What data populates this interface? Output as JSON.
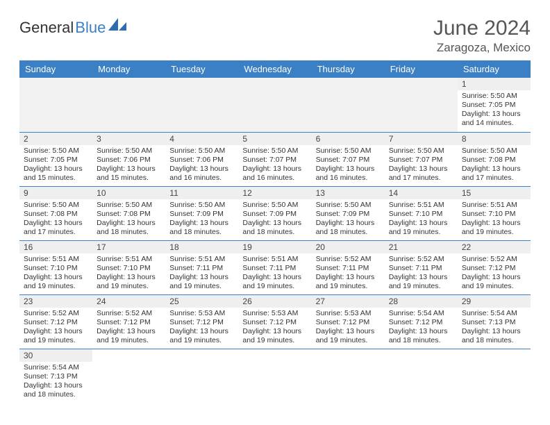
{
  "brand": {
    "part1": "General",
    "part2": "Blue"
  },
  "title": "June 2024",
  "location": "Zaragoza, Mexico",
  "columns": [
    "Sunday",
    "Monday",
    "Tuesday",
    "Wednesday",
    "Thursday",
    "Friday",
    "Saturday"
  ],
  "colors": {
    "header_bg": "#3b7fc4",
    "header_text": "#ffffff",
    "daybar_bg": "#efefef",
    "rule": "#3b7fc4"
  },
  "weeks": [
    [
      null,
      null,
      null,
      null,
      null,
      null,
      {
        "n": "1",
        "sr": "5:50 AM",
        "ss": "7:05 PM",
        "dl": "13 hours and 14 minutes."
      }
    ],
    [
      {
        "n": "2",
        "sr": "5:50 AM",
        "ss": "7:05 PM",
        "dl": "13 hours and 15 minutes."
      },
      {
        "n": "3",
        "sr": "5:50 AM",
        "ss": "7:06 PM",
        "dl": "13 hours and 15 minutes."
      },
      {
        "n": "4",
        "sr": "5:50 AM",
        "ss": "7:06 PM",
        "dl": "13 hours and 16 minutes."
      },
      {
        "n": "5",
        "sr": "5:50 AM",
        "ss": "7:07 PM",
        "dl": "13 hours and 16 minutes."
      },
      {
        "n": "6",
        "sr": "5:50 AM",
        "ss": "7:07 PM",
        "dl": "13 hours and 16 minutes."
      },
      {
        "n": "7",
        "sr": "5:50 AM",
        "ss": "7:07 PM",
        "dl": "13 hours and 17 minutes."
      },
      {
        "n": "8",
        "sr": "5:50 AM",
        "ss": "7:08 PM",
        "dl": "13 hours and 17 minutes."
      }
    ],
    [
      {
        "n": "9",
        "sr": "5:50 AM",
        "ss": "7:08 PM",
        "dl": "13 hours and 17 minutes."
      },
      {
        "n": "10",
        "sr": "5:50 AM",
        "ss": "7:08 PM",
        "dl": "13 hours and 18 minutes."
      },
      {
        "n": "11",
        "sr": "5:50 AM",
        "ss": "7:09 PM",
        "dl": "13 hours and 18 minutes."
      },
      {
        "n": "12",
        "sr": "5:50 AM",
        "ss": "7:09 PM",
        "dl": "13 hours and 18 minutes."
      },
      {
        "n": "13",
        "sr": "5:50 AM",
        "ss": "7:09 PM",
        "dl": "13 hours and 18 minutes."
      },
      {
        "n": "14",
        "sr": "5:51 AM",
        "ss": "7:10 PM",
        "dl": "13 hours and 19 minutes."
      },
      {
        "n": "15",
        "sr": "5:51 AM",
        "ss": "7:10 PM",
        "dl": "13 hours and 19 minutes."
      }
    ],
    [
      {
        "n": "16",
        "sr": "5:51 AM",
        "ss": "7:10 PM",
        "dl": "13 hours and 19 minutes."
      },
      {
        "n": "17",
        "sr": "5:51 AM",
        "ss": "7:10 PM",
        "dl": "13 hours and 19 minutes."
      },
      {
        "n": "18",
        "sr": "5:51 AM",
        "ss": "7:11 PM",
        "dl": "13 hours and 19 minutes."
      },
      {
        "n": "19",
        "sr": "5:51 AM",
        "ss": "7:11 PM",
        "dl": "13 hours and 19 minutes."
      },
      {
        "n": "20",
        "sr": "5:52 AM",
        "ss": "7:11 PM",
        "dl": "13 hours and 19 minutes."
      },
      {
        "n": "21",
        "sr": "5:52 AM",
        "ss": "7:11 PM",
        "dl": "13 hours and 19 minutes."
      },
      {
        "n": "22",
        "sr": "5:52 AM",
        "ss": "7:12 PM",
        "dl": "13 hours and 19 minutes."
      }
    ],
    [
      {
        "n": "23",
        "sr": "5:52 AM",
        "ss": "7:12 PM",
        "dl": "13 hours and 19 minutes."
      },
      {
        "n": "24",
        "sr": "5:52 AM",
        "ss": "7:12 PM",
        "dl": "13 hours and 19 minutes."
      },
      {
        "n": "25",
        "sr": "5:53 AM",
        "ss": "7:12 PM",
        "dl": "13 hours and 19 minutes."
      },
      {
        "n": "26",
        "sr": "5:53 AM",
        "ss": "7:12 PM",
        "dl": "13 hours and 19 minutes."
      },
      {
        "n": "27",
        "sr": "5:53 AM",
        "ss": "7:12 PM",
        "dl": "13 hours and 19 minutes."
      },
      {
        "n": "28",
        "sr": "5:54 AM",
        "ss": "7:12 PM",
        "dl": "13 hours and 18 minutes."
      },
      {
        "n": "29",
        "sr": "5:54 AM",
        "ss": "7:13 PM",
        "dl": "13 hours and 18 minutes."
      }
    ],
    [
      {
        "n": "30",
        "sr": "5:54 AM",
        "ss": "7:13 PM",
        "dl": "13 hours and 18 minutes."
      },
      null,
      null,
      null,
      null,
      null,
      null
    ]
  ],
  "labels": {
    "sunrise": "Sunrise:",
    "sunset": "Sunset:",
    "daylight": "Daylight:"
  }
}
